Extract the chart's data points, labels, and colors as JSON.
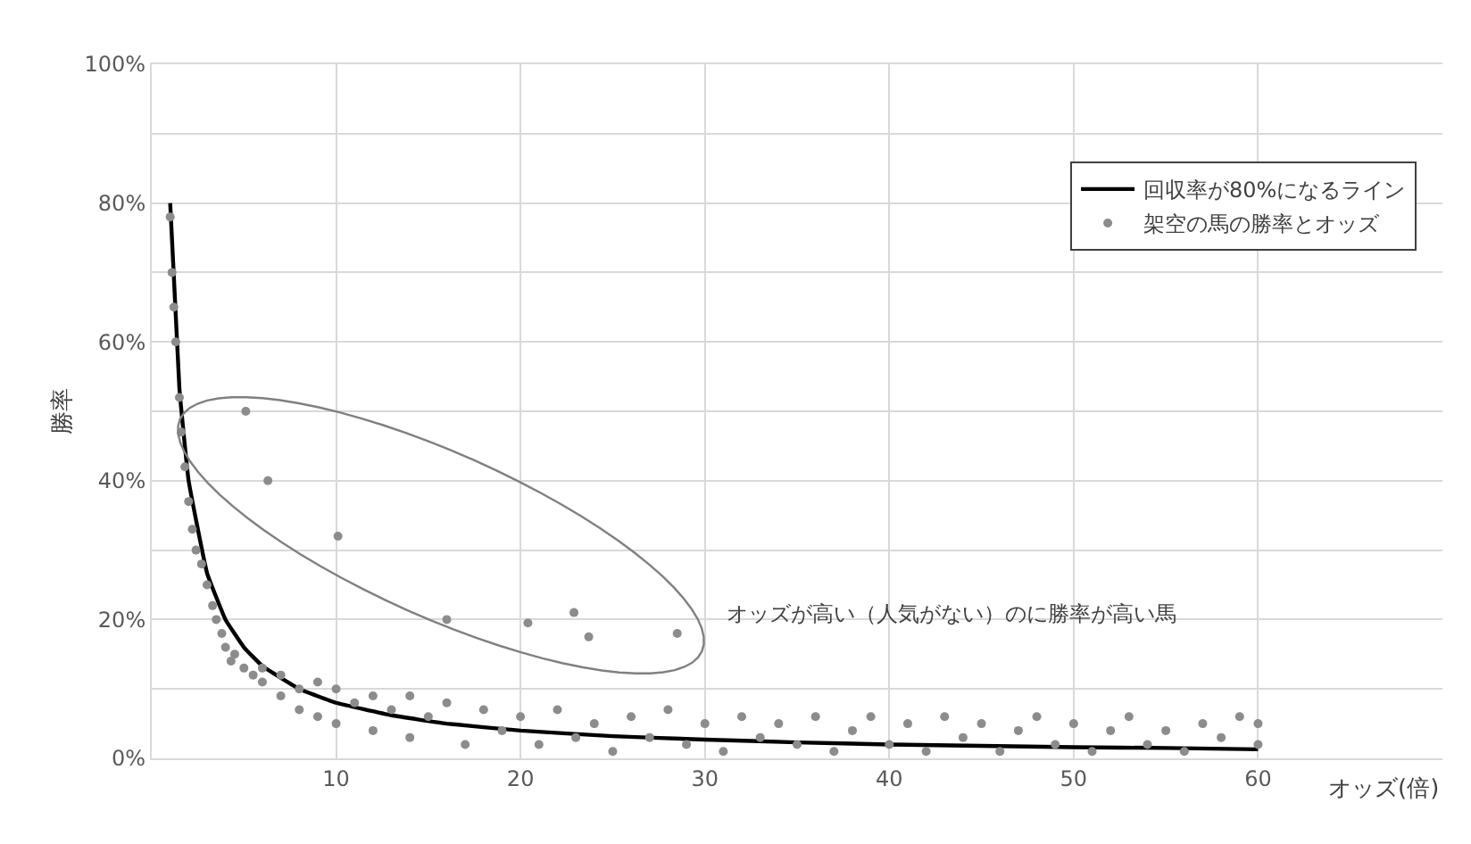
{
  "chart_data": {
    "type": "scatter",
    "xlabel": "オッズ(倍)",
    "ylabel": "勝率",
    "xlim": [
      0,
      70
    ],
    "xticks": [
      10,
      20,
      30,
      40,
      50,
      60
    ],
    "ylim": [
      0,
      1
    ],
    "yticks": [
      {
        "value": 0,
        "label": "0%"
      },
      {
        "value": 0.1,
        "label": null
      },
      {
        "value": 0.2,
        "label": "20%"
      },
      {
        "value": 0.3,
        "label": null
      },
      {
        "value": 0.4,
        "label": "40%"
      },
      {
        "value": 0.5,
        "label": null
      },
      {
        "value": 0.6,
        "label": "60%"
      },
      {
        "value": 0.7,
        "label": null
      },
      {
        "value": 0.8,
        "label": "80%"
      },
      {
        "value": 0.9,
        "label": null
      },
      {
        "value": 1,
        "label": "100%"
      }
    ],
    "grid": true,
    "legend": "top right",
    "annotations": [
      "オッズが高い（人気がない）のに勝率が高い馬"
    ],
    "series": [
      {
        "name": "回収率が80%になるライン",
        "type": "line",
        "color": "#000000",
        "marker": "none",
        "line_style": "solid",
        "x": [
          1,
          1.5,
          2,
          3,
          4,
          5,
          6,
          8,
          10,
          13,
          16,
          20,
          25,
          30,
          35,
          40,
          45,
          50,
          55,
          60
        ],
        "values": [
          0.8,
          0.533,
          0.4,
          0.267,
          0.2,
          0.16,
          0.133,
          0.1,
          0.08,
          0.062,
          0.05,
          0.04,
          0.032,
          0.027,
          0.023,
          0.02,
          0.018,
          0.016,
          0.015,
          0.013
        ]
      },
      {
        "name": "架空の馬の勝率とオッズ",
        "color": "#8c8c8c",
        "marker": "circle",
        "x": [
          1,
          1.1,
          1.2,
          1.3,
          1.5,
          1.6,
          1.8,
          2,
          2.2,
          2.4,
          2.7,
          3,
          3.3,
          3.5,
          3.8,
          4,
          4.3,
          4.5,
          5,
          5.5,
          6,
          6,
          7,
          7,
          8,
          8,
          9,
          9,
          10,
          10,
          11,
          12,
          12,
          13,
          14,
          14,
          15,
          16,
          17,
          18,
          19,
          20,
          21,
          22,
          23,
          24,
          25,
          26,
          27,
          28,
          29,
          30,
          31,
          32,
          33,
          34,
          35,
          36,
          37,
          38,
          39,
          40,
          41,
          42,
          43,
          44,
          45,
          46,
          47,
          48,
          49,
          50,
          51,
          52,
          53,
          54,
          55,
          56,
          57,
          58,
          59,
          60,
          60,
          5.1,
          6.3,
          10.1,
          16,
          20.4,
          22.9,
          23.7,
          28.5
        ],
        "values": [
          0.78,
          0.7,
          0.65,
          0.6,
          0.52,
          0.47,
          0.42,
          0.37,
          0.33,
          0.3,
          0.28,
          0.25,
          0.22,
          0.2,
          0.18,
          0.16,
          0.14,
          0.15,
          0.13,
          0.12,
          0.11,
          0.13,
          0.09,
          0.12,
          0.1,
          0.07,
          0.11,
          0.06,
          0.1,
          0.05,
          0.08,
          0.09,
          0.04,
          0.07,
          0.09,
          0.03,
          0.06,
          0.08,
          0.02,
          0.07,
          0.04,
          0.06,
          0.02,
          0.07,
          0.03,
          0.05,
          0.01,
          0.06,
          0.03,
          0.07,
          0.02,
          0.05,
          0.01,
          0.06,
          0.03,
          0.05,
          0.02,
          0.06,
          0.01,
          0.04,
          0.06,
          0.02,
          0.05,
          0.01,
          0.06,
          0.03,
          0.05,
          0.01,
          0.04,
          0.06,
          0.02,
          0.05,
          0.01,
          0.04,
          0.06,
          0.02,
          0.04,
          0.01,
          0.05,
          0.03,
          0.06,
          0.02,
          0.05,
          0.5,
          0.4,
          0.32,
          0.2,
          0.195,
          0.21,
          0.175,
          0.18
        ]
      }
    ]
  }
}
